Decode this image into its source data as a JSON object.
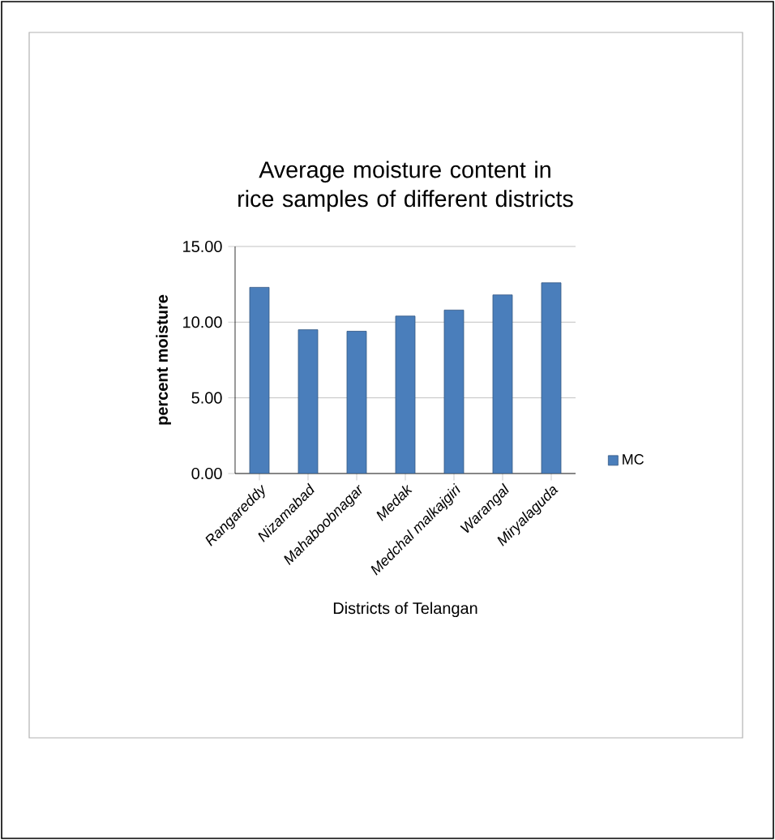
{
  "chart_data": {
    "type": "bar",
    "title": "Average moisture content in rice samples of different districts",
    "xlabel": "Districts of Telangan",
    "ylabel": "percent moisture",
    "categories": [
      "Rangareddy",
      "Nizamabad",
      "Mahaboobnagar",
      "Medak",
      "Medchal malkajgiri",
      "Warangal",
      "Miryalaguda"
    ],
    "series": [
      {
        "name": "MC",
        "color": "#4a7ebb",
        "values": [
          12.3,
          9.5,
          9.4,
          10.4,
          10.8,
          11.8,
          12.6
        ]
      }
    ],
    "ylim": [
      0,
      15
    ],
    "yticks": [
      {
        "value": 0,
        "label": "0.00"
      },
      {
        "value": 5,
        "label": "5.00"
      },
      {
        "value": 10,
        "label": "10.00"
      },
      {
        "value": 15,
        "label": "15.00"
      }
    ],
    "grid": "y",
    "legend": "right"
  }
}
